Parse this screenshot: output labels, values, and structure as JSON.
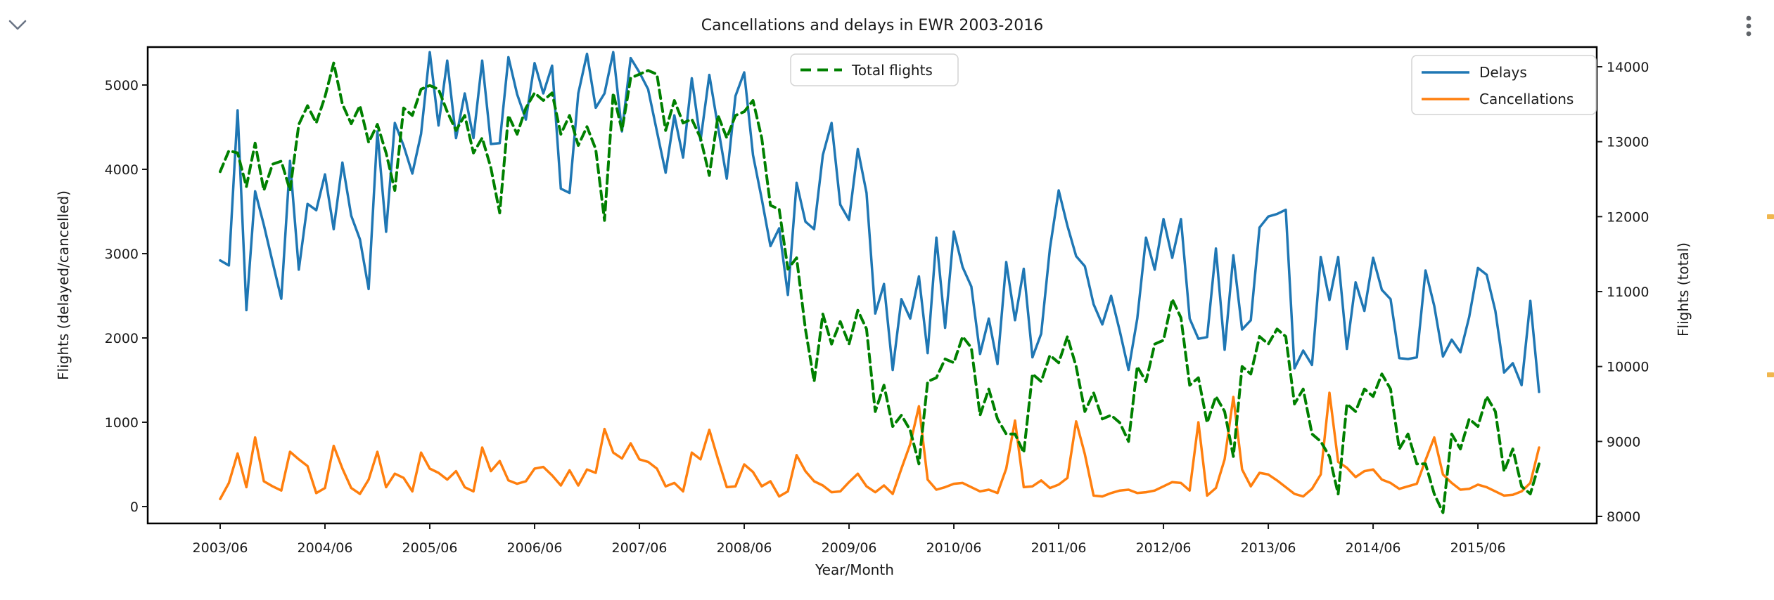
{
  "page": {
    "background": "#ffffff",
    "cell_controls": {
      "collapse_icon": "chevron-down",
      "menu_icon": "vertical-kebab-dots"
    },
    "edge_marks": {
      "color": "#f0b64e",
      "positions_y": [
        305,
        530
      ]
    }
  },
  "chart_data": {
    "type": "line",
    "title": "Cancellations and delays in EWR 2003-2016",
    "xlabel": "Year/Month",
    "ylabel_left": "Flights (delayed/cancelled)",
    "ylabel_right": "Flights (total)",
    "x_start": "2003/06",
    "x_end": "2016/01",
    "x_freq": "monthly",
    "grid": false,
    "x_tick_labels": [
      "2003/06",
      "2004/06",
      "2005/06",
      "2006/06",
      "2007/06",
      "2008/06",
      "2009/06",
      "2010/06",
      "2011/06",
      "2012/06",
      "2013/06",
      "2014/06",
      "2015/06"
    ],
    "left_tick_values": [
      0,
      1000,
      2000,
      3000,
      4000,
      5000
    ],
    "left_tick_labels": [
      "0",
      "1000",
      "2000",
      "3000",
      "4000",
      "5000"
    ],
    "right_tick_values": [
      8000,
      9000,
      10000,
      11000,
      12000,
      13000,
      14000
    ],
    "right_tick_labels": [
      "8000",
      "9000",
      "10000",
      "11000",
      "12000",
      "13000",
      "14000"
    ],
    "legend_center": {
      "label": "Total flights"
    },
    "legend_right": {
      "labels": [
        "Delays",
        "Cancellations"
      ]
    },
    "colors": {
      "delays": "#1f77b4",
      "cancellations": "#ff7f0e",
      "total_flights": "#008000"
    },
    "series": [
      {
        "name": "Delays",
        "axis": "left",
        "style": "solid",
        "color": "#1f77b4",
        "values": [
          2920,
          2860,
          4700,
          2330,
          3740,
          3340,
          2900,
          2465,
          4100,
          2810,
          3590,
          3515,
          3940,
          3290,
          4080,
          3450,
          3170,
          2580,
          4450,
          3260,
          4550,
          4280,
          3950,
          4420,
          5390,
          4520,
          5290,
          4370,
          4900,
          4370,
          5290,
          4300,
          4310,
          5330,
          4890,
          4590,
          5260,
          4900,
          5230,
          3770,
          3720,
          4900,
          5370,
          4730,
          4900,
          5390,
          4450,
          5320,
          5150,
          4950,
          4450,
          3960,
          4640,
          4140,
          5080,
          4340,
          5120,
          4500,
          3890,
          4870,
          5150,
          4170,
          3650,
          3090,
          3300,
          2510,
          3840,
          3380,
          3290,
          4170,
          4550,
          3580,
          3400,
          4240,
          3720,
          2290,
          2640,
          1620,
          2460,
          2230,
          2730,
          1820,
          3190,
          2120,
          3260,
          2840,
          2610,
          1810,
          2230,
          1690,
          2900,
          2210,
          2820,
          1770,
          2050,
          3060,
          3750,
          3330,
          2970,
          2850,
          2400,
          2160,
          2500,
          2080,
          1620,
          2230,
          3190,
          2810,
          3410,
          2950,
          3410,
          2230,
          1990,
          2010,
          3060,
          1860,
          2980,
          2100,
          2210,
          3310,
          3440,
          3470,
          3520,
          1640,
          1850,
          1680,
          2960,
          2450,
          2960,
          1870,
          2660,
          2320,
          2950,
          2570,
          2460,
          1760,
          1750,
          1770,
          2800,
          2380,
          1780,
          1980,
          1830,
          2250,
          2830,
          2750,
          2320,
          1590,
          1700,
          1440,
          2440,
          1360
        ]
      },
      {
        "name": "Cancellations",
        "axis": "left",
        "style": "solid",
        "color": "#ff7f0e",
        "values": [
          90,
          280,
          630,
          230,
          820,
          300,
          240,
          190,
          650,
          560,
          480,
          160,
          220,
          720,
          450,
          220,
          150,
          320,
          650,
          230,
          390,
          340,
          180,
          640,
          450,
          400,
          320,
          420,
          230,
          180,
          700,
          420,
          540,
          310,
          270,
          300,
          450,
          470,
          370,
          250,
          430,
          250,
          440,
          400,
          920,
          640,
          570,
          750,
          560,
          530,
          450,
          240,
          280,
          180,
          640,
          560,
          910,
          560,
          230,
          240,
          500,
          410,
          240,
          300,
          120,
          180,
          610,
          420,
          300,
          250,
          170,
          180,
          290,
          390,
          240,
          170,
          250,
          150,
          450,
          740,
          1190,
          320,
          200,
          230,
          270,
          280,
          230,
          180,
          200,
          160,
          450,
          1020,
          230,
          240,
          310,
          220,
          260,
          340,
          1010,
          620,
          130,
          120,
          160,
          190,
          200,
          160,
          170,
          190,
          240,
          290,
          280,
          190,
          1000,
          130,
          220,
          560,
          1300,
          440,
          240,
          400,
          380,
          310,
          230,
          150,
          120,
          210,
          380,
          1350,
          530,
          460,
          350,
          420,
          440,
          320,
          280,
          210,
          240,
          270,
          550,
          820,
          380,
          280,
          200,
          210,
          260,
          230,
          180,
          130,
          140,
          180,
          280,
          700
        ]
      },
      {
        "name": "Total flights",
        "axis": "right",
        "style": "dashed",
        "color": "#008000",
        "values": [
          12600,
          12880,
          12850,
          12400,
          12980,
          12350,
          12700,
          12740,
          12350,
          13230,
          13480,
          13250,
          13600,
          14050,
          13500,
          13240,
          13480,
          12990,
          13230,
          12850,
          12350,
          13450,
          13350,
          13700,
          13750,
          13700,
          13400,
          13150,
          13350,
          12850,
          13050,
          12650,
          12050,
          13350,
          13100,
          13450,
          13650,
          13550,
          13650,
          13100,
          13350,
          12950,
          13200,
          12900,
          11950,
          13650,
          13150,
          13850,
          13900,
          13950,
          13900,
          13150,
          13550,
          13250,
          13300,
          13050,
          12550,
          13350,
          13050,
          13350,
          13400,
          13550,
          13050,
          12150,
          12100,
          11300,
          11450,
          10500,
          9800,
          10700,
          10300,
          10600,
          10300,
          10750,
          10500,
          9400,
          9750,
          9200,
          9350,
          9150,
          8700,
          9800,
          9850,
          10100,
          10050,
          10400,
          10250,
          9350,
          9700,
          9300,
          9100,
          9100,
          8850,
          9900,
          9800,
          10150,
          10050,
          10400,
          10000,
          9400,
          9650,
          9300,
          9350,
          9250,
          9000,
          10000,
          9800,
          10300,
          10350,
          10900,
          10650,
          9750,
          9850,
          9250,
          9600,
          9400,
          8800,
          10000,
          9900,
          10400,
          10300,
          10500,
          10400,
          9500,
          9700,
          9100,
          9000,
          8800,
          8300,
          9500,
          9400,
          9700,
          9600,
          9900,
          9700,
          8900,
          9100,
          8700,
          8700,
          8300,
          8050,
          9100,
          8900,
          9300,
          9200,
          9600,
          9400,
          8600,
          8900,
          8400,
          8300,
          8700
        ]
      }
    ]
  }
}
